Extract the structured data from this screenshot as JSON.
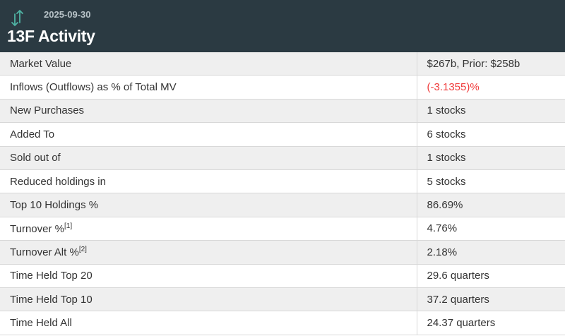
{
  "header": {
    "date": "2025-09-30",
    "title": "13F Activity",
    "icon": "up-down-arrows-icon",
    "icon_color": "#4fb3a4"
  },
  "colors": {
    "header_bg": "#2b3a42",
    "negative": "#f03a3a"
  },
  "rows": [
    {
      "label": "Market Value",
      "value": "$267b, Prior: $258b"
    },
    {
      "label": "Inflows (Outflows) as % of Total MV",
      "value": "(-3.1355)%"
    },
    {
      "label": "New Purchases",
      "value": "1 stocks"
    },
    {
      "label": "Added To",
      "value": "6 stocks"
    },
    {
      "label": "Sold out of",
      "value": "1 stocks"
    },
    {
      "label": "Reduced holdings in",
      "value": "5 stocks"
    },
    {
      "label": "Top 10 Holdings %",
      "value": "86.69%"
    },
    {
      "label": "Turnover %",
      "footnote": "[1]",
      "value": "4.76%"
    },
    {
      "label": "Turnover Alt %",
      "footnote": "[2]",
      "value": "2.18%"
    },
    {
      "label": "Time Held Top 20",
      "value": "29.6 quarters"
    },
    {
      "label": "Time Held Top 10",
      "value": "37.2 quarters"
    },
    {
      "label": "Time Held All",
      "value": "24.37 quarters"
    }
  ]
}
